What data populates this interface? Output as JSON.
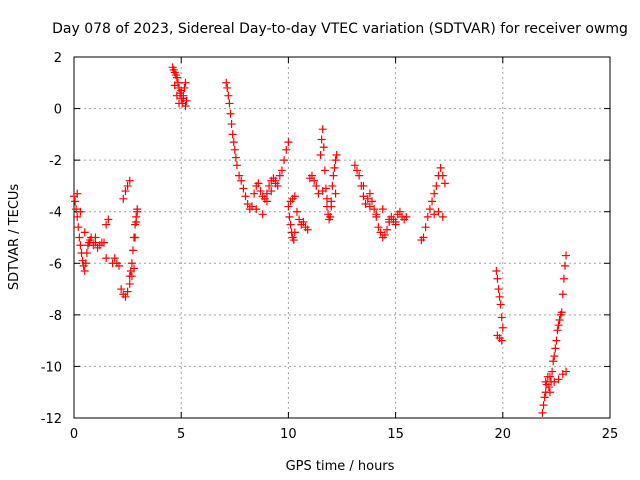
{
  "chart_data": {
    "type": "scatter",
    "title": "Day 078 of 2023, Sidereal Day-to-day VTEC variation (SDTVAR) for receiver owmg",
    "xlabel": "GPS time / hours",
    "ylabel": "SDTVAR / TECUs",
    "xlim": [
      0,
      25
    ],
    "ylim": [
      -12,
      2
    ],
    "xticks": [
      0,
      5,
      10,
      15,
      20,
      25
    ],
    "yticks": [
      -12,
      -10,
      -8,
      -6,
      -4,
      -2,
      0,
      2
    ],
    "xtick_labels": [
      "0",
      "5",
      "10",
      "15",
      "20",
      "25"
    ],
    "ytick_labels": [
      "-12",
      "-10",
      "-8",
      "-6",
      "-4",
      "-2",
      "0",
      "2"
    ],
    "grid": true,
    "marker": "+",
    "series": [
      {
        "name": "SDTVAR",
        "color": "#ff0000",
        "x": [
          0.0,
          0.05,
          0.1,
          0.15,
          0.2,
          0.25,
          0.3,
          0.35,
          0.4,
          0.45,
          0.5,
          0.55,
          0.6,
          0.65,
          0.7,
          0.75,
          0.8,
          0.9,
          1.0,
          1.1,
          1.2,
          1.3,
          1.4,
          1.5,
          1.6,
          0.15,
          0.3,
          0.5,
          1.0,
          1.5,
          1.8,
          1.9,
          2.0,
          2.1,
          2.2,
          2.3,
          2.4,
          2.5,
          2.6,
          2.7,
          2.8,
          2.85,
          2.9,
          2.95,
          2.3,
          2.4,
          2.5,
          2.6,
          2.6,
          2.65,
          2.7,
          2.75,
          2.8,
          2.85,
          2.9,
          2.95,
          4.6,
          4.65,
          4.7,
          4.75,
          4.8,
          4.85,
          4.9,
          4.95,
          5.0,
          5.05,
          5.1,
          5.15,
          5.2,
          5.25,
          4.7,
          4.8,
          4.9,
          5.0,
          5.1,
          5.2,
          7.1,
          7.15,
          7.2,
          7.25,
          7.3,
          7.35,
          7.4,
          7.45,
          7.5,
          7.55,
          7.6,
          7.7,
          7.8,
          7.9,
          8.0,
          8.1,
          8.2,
          8.3,
          8.4,
          8.5,
          8.6,
          8.7,
          8.8,
          8.9,
          9.0,
          9.1,
          9.2,
          9.3,
          9.4,
          9.5,
          8.5,
          8.8,
          9.0,
          9.2,
          9.4,
          9.6,
          9.7,
          9.8,
          9.9,
          10.0,
          10.05,
          10.1,
          10.15,
          10.2,
          10.25,
          10.3,
          10.0,
          10.1,
          10.2,
          10.3,
          10.4,
          10.5,
          10.6,
          10.7,
          10.8,
          10.9,
          11.0,
          11.1,
          11.2,
          11.3,
          11.4,
          11.5,
          11.55,
          11.6,
          11.65,
          11.7,
          11.75,
          11.8,
          11.85,
          11.9,
          11.95,
          12.0,
          12.05,
          12.1,
          12.15,
          12.2,
          12.25,
          11.6,
          11.8,
          12.0,
          12.2,
          13.1,
          13.2,
          13.3,
          13.4,
          13.5,
          13.6,
          13.7,
          13.8,
          13.9,
          14.0,
          14.1,
          14.2,
          14.3,
          14.4,
          14.5,
          14.6,
          14.7,
          14.8,
          14.9,
          15.0,
          15.1,
          15.2,
          15.3,
          15.4,
          15.5,
          13.5,
          13.8,
          14.1,
          14.4,
          14.7,
          15.0,
          16.2,
          16.3,
          16.4,
          16.5,
          16.6,
          16.7,
          16.8,
          16.9,
          17.0,
          17.1,
          17.2,
          17.3,
          16.8,
          17.0,
          17.2,
          19.7,
          19.75,
          19.8,
          19.85,
          19.9,
          19.95,
          20.0,
          19.75,
          19.85,
          19.95,
          21.85,
          21.9,
          21.95,
          22.0,
          22.05,
          22.1,
          22.15,
          22.2,
          22.25,
          22.3,
          22.35,
          22.4,
          22.45,
          22.5,
          22.55,
          22.6,
          22.65,
          22.7,
          22.75,
          22.8,
          22.85,
          22.9,
          22.95,
          22.0,
          22.2,
          22.4,
          22.6,
          22.8,
          22.95
        ],
        "y": [
          -3.4,
          -3.6,
          -3.9,
          -4.2,
          -4.6,
          -5.0,
          -5.3,
          -5.6,
          -5.9,
          -6.1,
          -6.3,
          -6.0,
          -5.6,
          -5.3,
          -5.2,
          -5.1,
          -5.0,
          -5.3,
          -5.2,
          -5.4,
          -5.3,
          -5.2,
          -5.2,
          -4.5,
          -4.3,
          -3.3,
          -4.0,
          -4.8,
          -5.0,
          -5.8,
          -6.0,
          -5.8,
          -6.0,
          -6.1,
          -7.0,
          -7.2,
          -7.3,
          -7.1,
          -6.8,
          -6.5,
          -6.2,
          -5.0,
          -4.4,
          -3.9,
          -3.5,
          -3.2,
          -3.0,
          -2.8,
          -6.5,
          -6.3,
          -6.0,
          -5.5,
          -5.0,
          -4.5,
          -4.2,
          -4.0,
          1.6,
          1.5,
          1.4,
          1.3,
          1.2,
          1.0,
          0.8,
          0.6,
          0.4,
          0.2,
          0.5,
          0.8,
          1.0,
          0.3,
          0.9,
          0.5,
          0.2,
          0.7,
          0.4,
          0.1,
          1.0,
          0.8,
          0.5,
          0.2,
          -0.2,
          -0.6,
          -1.0,
          -1.3,
          -1.6,
          -1.9,
          -2.2,
          -2.6,
          -2.8,
          -3.1,
          -3.4,
          -3.7,
          -3.9,
          -3.8,
          -3.3,
          -3.0,
          -2.9,
          -3.2,
          -3.4,
          -3.5,
          -3.3,
          -3.0,
          -2.8,
          -2.7,
          -2.8,
          -3.0,
          -3.9,
          -4.1,
          -3.6,
          -3.2,
          -2.9,
          -2.6,
          -2.4,
          -2.0,
          -1.6,
          -1.3,
          -4.2,
          -4.5,
          -4.8,
          -5.0,
          -5.1,
          -4.8,
          -3.8,
          -3.6,
          -3.5,
          -3.4,
          -4.0,
          -4.3,
          -4.5,
          -4.4,
          -4.6,
          -4.7,
          -2.7,
          -2.6,
          -2.8,
          -3.0,
          -3.3,
          -1.8,
          -1.2,
          -0.8,
          -1.5,
          -2.4,
          -3.1,
          -3.8,
          -4.1,
          -4.3,
          -4.2,
          -3.6,
          -3.0,
          -2.6,
          -2.3,
          -2.0,
          -1.8,
          -3.2,
          -3.5,
          -3.8,
          -3.3,
          -2.2,
          -2.4,
          -2.6,
          -3.0,
          -3.4,
          -3.7,
          -3.5,
          -3.3,
          -3.6,
          -3.9,
          -4.2,
          -4.6,
          -4.8,
          -5.0,
          -4.9,
          -4.7,
          -4.4,
          -4.2,
          -4.3,
          -4.4,
          -4.1,
          -4.0,
          -4.2,
          -4.3,
          -4.2,
          -3.0,
          -3.8,
          -4.1,
          -3.9,
          -4.3,
          -4.5,
          -5.1,
          -5.0,
          -4.6,
          -4.2,
          -3.9,
          -3.6,
          -3.3,
          -3.0,
          -2.6,
          -2.3,
          -2.6,
          -2.9,
          -4.1,
          -4.0,
          -4.2,
          -6.3,
          -6.6,
          -7.0,
          -7.3,
          -7.6,
          -8.1,
          -8.5,
          -8.8,
          -8.9,
          -9.0,
          -11.8,
          -11.5,
          -11.2,
          -11.0,
          -10.7,
          -10.4,
          -10.8,
          -11.0,
          -10.6,
          -10.2,
          -9.8,
          -9.6,
          -9.3,
          -9.0,
          -8.6,
          -8.4,
          -8.2,
          -8.0,
          -7.9,
          -7.2,
          -6.6,
          -6.1,
          -5.7,
          -10.6,
          -10.4,
          -10.6,
          -10.5,
          -10.3,
          -10.2
        ]
      }
    ]
  }
}
